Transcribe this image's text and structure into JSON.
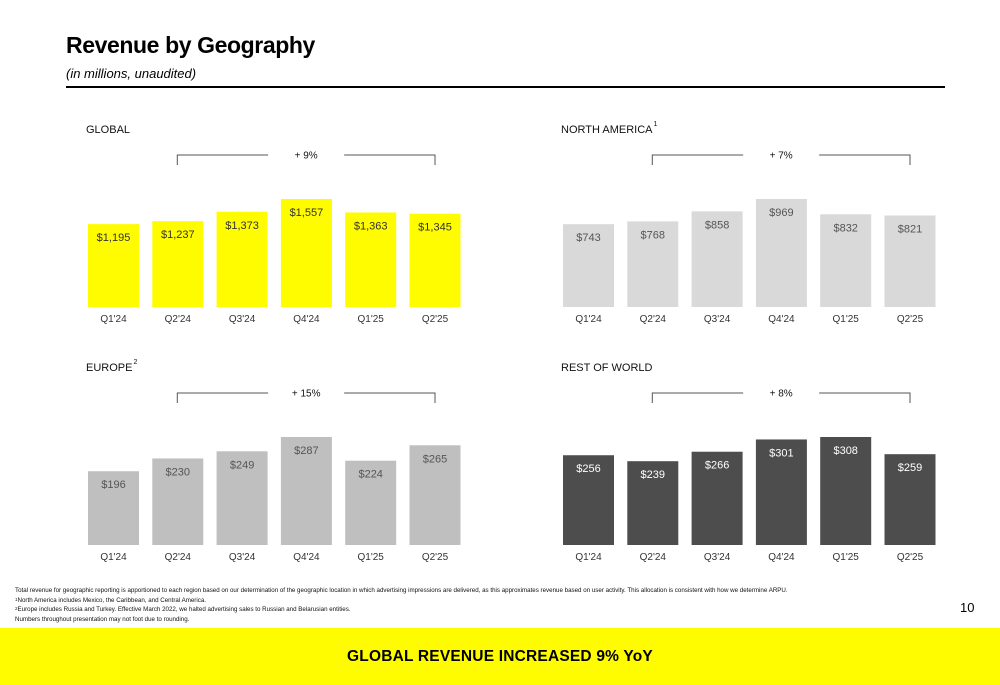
{
  "title": "Revenue by Geography",
  "subtitle": "(in millions, unaudited)",
  "colors": {
    "global": "#FFFC00",
    "north_america": "#D9D9D9",
    "europe": "#BFBFBF",
    "rest_of_world": "#4D4D4D",
    "banner": "#FFFC00"
  },
  "chart_data": [
    {
      "type": "bar",
      "title": "GLOBAL",
      "title_sup": "",
      "growth_label": "+ 9%",
      "categories": [
        "Q1'24",
        "Q2'24",
        "Q3'24",
        "Q4'24",
        "Q1'25",
        "Q2'25"
      ],
      "values": [
        1195,
        1237,
        1373,
        1557,
        1363,
        1345
      ],
      "data_labels": [
        "$1,195",
        "$1,237",
        "$1,373",
        "$1,557",
        "$1,363",
        "$1,345"
      ],
      "ylim": [
        0,
        1557
      ],
      "bar_color": "#FFFC00",
      "label_color": "#333333"
    },
    {
      "type": "bar",
      "title": "NORTH AMERICA",
      "title_sup": "1",
      "growth_label": "+ 7%",
      "categories": [
        "Q1'24",
        "Q2'24",
        "Q3'24",
        "Q4'24",
        "Q1'25",
        "Q2'25"
      ],
      "values": [
        743,
        768,
        858,
        969,
        832,
        821
      ],
      "data_labels": [
        "$743",
        "$768",
        "$858",
        "$969",
        "$832",
        "$821"
      ],
      "ylim": [
        0,
        969
      ],
      "bar_color": "#D9D9D9",
      "label_color": "#555555"
    },
    {
      "type": "bar",
      "title": "EUROPE",
      "title_sup": "2",
      "growth_label": "+ 15%",
      "categories": [
        "Q1'24",
        "Q2'24",
        "Q3'24",
        "Q4'24",
        "Q1'25",
        "Q2'25"
      ],
      "values": [
        196,
        230,
        249,
        287,
        224,
        265
      ],
      "data_labels": [
        "$196",
        "$230",
        "$249",
        "$287",
        "$224",
        "$265"
      ],
      "ylim": [
        0,
        287
      ],
      "bar_color": "#BFBFBF",
      "label_color": "#555555"
    },
    {
      "type": "bar",
      "title": "REST OF WORLD",
      "title_sup": "",
      "growth_label": "+ 8%",
      "categories": [
        "Q1'24",
        "Q2'24",
        "Q3'24",
        "Q4'24",
        "Q1'25",
        "Q2'25"
      ],
      "values": [
        256,
        239,
        266,
        301,
        308,
        259
      ],
      "data_labels": [
        "$256",
        "$239",
        "$266",
        "$301",
        "$308",
        "$259"
      ],
      "ylim": [
        0,
        308
      ],
      "bar_color": "#4D4D4D",
      "label_color": "#FFFFFF"
    }
  ],
  "footnotes": {
    "line1": "Total revenue for geographic reporting is apportioned to each region based on our determination of the geographic location in which advertising impressions are delivered, as this approximates revenue based on user activity. This allocation is consistent with how we determine ARPU.",
    "line2_sup": "1",
    "line2": "North America includes Mexico, the Caribbean, and Central America.",
    "line3_sup": "2",
    "line3": "Europe includes Russia and Turkey. Effective March 2022, we halted advertising sales to Russian and Belarusian entities.",
    "line4": "Numbers throughout presentation may not foot due to rounding."
  },
  "page_number": "10",
  "banner_text": "GLOBAL REVENUE INCREASED 9% YoY"
}
